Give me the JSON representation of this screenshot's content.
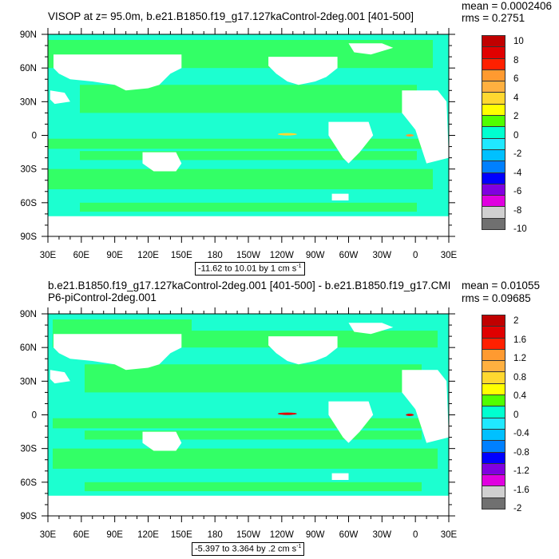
{
  "panels": [
    {
      "title": "VISOP at z=  95.0m, b.e21.B1850.f19_g17.127kaControl-2deg.001 [401-500]",
      "mean": "mean = 0.0002406",
      "rms": "rms = 0.2751",
      "colorbar_labels": [
        "10",
        "8",
        "6",
        "4",
        "2",
        "0",
        "-2",
        "-4",
        "-6",
        "-8",
        "-10"
      ],
      "ref_vector": {
        "text": "-11.62 to 10.01 by 1 cm s",
        "sup": "-1"
      }
    },
    {
      "title": "b.e21.B1850.f19_g17.127kaControl-2deg.001 [401-500] - b.e21.B1850.f19_g17.CMIP6-piControl-2deg.001",
      "mean": "mean = 0.01055",
      "rms": "rms = 0.09685",
      "colorbar_labels": [
        "2",
        "1.6",
        "1.2",
        "0.8",
        "0.4",
        "0",
        "-0.4",
        "-0.8",
        "-1.2",
        "-1.6",
        "-2"
      ],
      "ref_vector": {
        "text": "-5.397 to 3.364 by .2 cm s",
        "sup": "-1"
      }
    }
  ],
  "axes": {
    "lat_labels": [
      "90N",
      "60N",
      "30N",
      "0",
      "30S",
      "60S",
      "90S"
    ],
    "lon_labels": [
      "30E",
      "60E",
      "90E",
      "120E",
      "150E",
      "180",
      "150W",
      "120W",
      "90W",
      "60W",
      "30W",
      "0",
      "30E"
    ]
  },
  "colors": {
    "colorbar": [
      "#c00000",
      "#e00000",
      "#ff2000",
      "#f08000",
      "#ff9a30",
      "#ffb040",
      "#ffd830",
      "#ffff00",
      "#50ff00",
      "#00ff60",
      "#00ffd0",
      "#00ffff",
      "#20e8ff",
      "#00c0ff",
      "#0080ff",
      "#0000ff",
      "#8000e0",
      "#e000e0",
      "#d0d0d0",
      "#707070"
    ],
    "ocean_cyan": "#1cffd0",
    "ocean_green": "#33ff66",
    "land": "#ffffff"
  }
}
